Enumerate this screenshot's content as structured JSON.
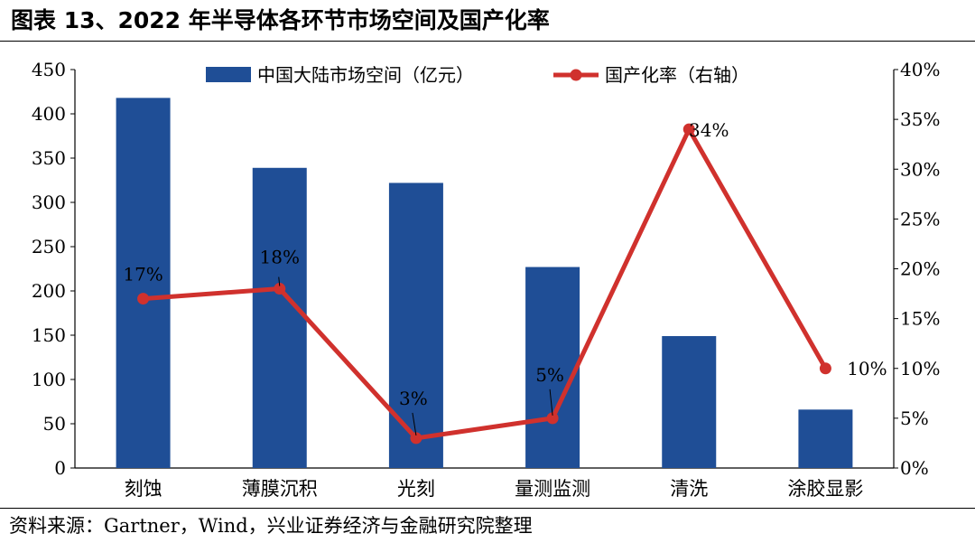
{
  "figure": {
    "title": "图表 13、2022 年半导体各环节市场空间及国产化率",
    "source": "资料来源：Gartner，Wind，兴业证券经济与金融研究院整理"
  },
  "colors": {
    "bar": "#1F4E96",
    "line": "#D0312D"
  },
  "chart_data": {
    "type": "bar",
    "categories": [
      "刻蚀",
      "薄膜沉积",
      "光刻",
      "量测监测",
      "清洗",
      "涂胶显影"
    ],
    "series": [
      {
        "name": "中国大陆市场空间（亿元）",
        "type": "bar",
        "axis": "left",
        "values": [
          418,
          339,
          322,
          227,
          149,
          66
        ]
      },
      {
        "name": "国产化率（右轴）",
        "type": "line",
        "axis": "right",
        "values": [
          17,
          18,
          3,
          5,
          34,
          10
        ],
        "data_labels": [
          "17%",
          "18%",
          "3%",
          "5%",
          "34%",
          "10%"
        ]
      }
    ],
    "y_left": {
      "lim": [
        0,
        450
      ],
      "ticks": [
        "0",
        "50",
        "100",
        "150",
        "200",
        "250",
        "300",
        "350",
        "400",
        "450"
      ]
    },
    "y_right": {
      "lim": [
        0,
        40
      ],
      "ticks": [
        "0%",
        "5%",
        "10%",
        "15%",
        "20%",
        "25%",
        "30%",
        "35%",
        "40%"
      ]
    },
    "grid": false,
    "legend": "top"
  }
}
